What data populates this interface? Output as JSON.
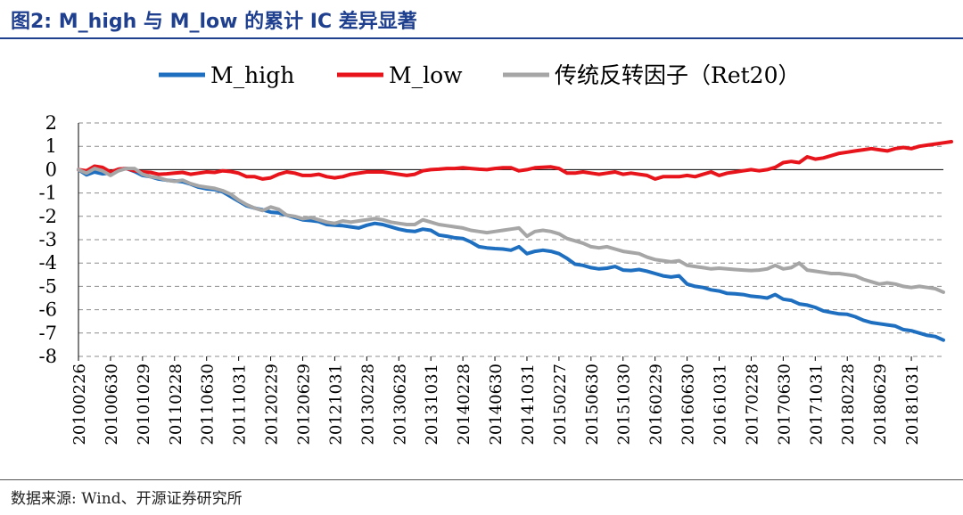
{
  "figure": {
    "title": "图2:  M_high 与 M_low 的累计 IC 差异显著",
    "source": "数据来源:  Wind、开源证券研究所"
  },
  "chart_data": {
    "type": "line",
    "title": "图2:  M_high 与 M_low 的累计 IC 差异显著",
    "xlabel": "",
    "ylabel": "",
    "ylim": [
      -8,
      2
    ],
    "yticks": [
      2,
      1,
      0,
      -1,
      -2,
      -3,
      -4,
      -5,
      -6,
      -7,
      -8
    ],
    "grid": true,
    "legend_position": "top",
    "x_tick_labels": [
      "20100226",
      "20100630",
      "20101029",
      "20110228",
      "20110630",
      "20111031",
      "20120229",
      "20120629",
      "20121031",
      "20130228",
      "20130628",
      "20131031",
      "20140228",
      "20140630",
      "20141031",
      "20150227",
      "20150630",
      "20151030",
      "20160229",
      "20160630",
      "20161031",
      "20170228",
      "20170630",
      "20171031",
      "20180228",
      "20180629",
      "20181031"
    ],
    "tick_every": 4,
    "series": [
      {
        "name": "M_high",
        "color": "#1f6fc0",
        "values": [
          0,
          -0.22,
          -0.1,
          -0.18,
          -0.14,
          0.02,
          0.05,
          -0.08,
          -0.25,
          -0.3,
          -0.4,
          -0.45,
          -0.48,
          -0.52,
          -0.62,
          -0.75,
          -0.82,
          -0.85,
          -0.95,
          -1.15,
          -1.35,
          -1.55,
          -1.65,
          -1.72,
          -1.82,
          -1.85,
          -1.95,
          -2.05,
          -2.15,
          -2.18,
          -2.22,
          -2.35,
          -2.38,
          -2.4,
          -2.45,
          -2.5,
          -2.38,
          -2.3,
          -2.35,
          -2.45,
          -2.55,
          -2.62,
          -2.65,
          -2.55,
          -2.6,
          -2.8,
          -2.85,
          -2.92,
          -2.95,
          -3.1,
          -3.3,
          -3.35,
          -3.38,
          -3.4,
          -3.45,
          -3.3,
          -3.6,
          -3.5,
          -3.45,
          -3.5,
          -3.6,
          -3.8,
          -4.05,
          -4.1,
          -4.2,
          -4.25,
          -4.22,
          -4.15,
          -4.3,
          -4.32,
          -4.28,
          -4.35,
          -4.45,
          -4.55,
          -4.6,
          -4.55,
          -4.9,
          -5.0,
          -5.05,
          -5.15,
          -5.2,
          -5.3,
          -5.32,
          -5.35,
          -5.42,
          -5.45,
          -5.5,
          -5.35,
          -5.55,
          -5.6,
          -5.75,
          -5.8,
          -5.9,
          -6.05,
          -6.12,
          -6.18,
          -6.2,
          -6.3,
          -6.45,
          -6.55,
          -6.6,
          -6.65,
          -6.7,
          -6.85,
          -6.9,
          -7.0,
          -7.1,
          -7.15,
          -7.3
        ]
      },
      {
        "name": "M_low",
        "color": "#e8141b",
        "values": [
          0,
          -0.05,
          0.15,
          0.1,
          -0.1,
          0.02,
          0.05,
          -0.05,
          -0.1,
          -0.12,
          -0.2,
          -0.18,
          -0.15,
          -0.12,
          -0.2,
          -0.15,
          -0.1,
          -0.12,
          -0.05,
          -0.08,
          -0.15,
          -0.3,
          -0.3,
          -0.4,
          -0.35,
          -0.2,
          -0.1,
          -0.15,
          -0.25,
          -0.25,
          -0.2,
          -0.3,
          -0.35,
          -0.3,
          -0.2,
          -0.15,
          -0.1,
          -0.1,
          -0.1,
          -0.15,
          -0.2,
          -0.25,
          -0.2,
          -0.05,
          0.0,
          0.02,
          0.05,
          0.05,
          0.08,
          0.05,
          0.02,
          0.0,
          0.05,
          0.08,
          0.08,
          -0.05,
          0.0,
          0.08,
          0.1,
          0.12,
          0.05,
          -0.15,
          -0.15,
          -0.1,
          -0.15,
          -0.2,
          -0.15,
          -0.1,
          -0.2,
          -0.15,
          -0.2,
          -0.25,
          -0.4,
          -0.3,
          -0.3,
          -0.3,
          -0.25,
          -0.3,
          -0.2,
          -0.1,
          -0.25,
          -0.15,
          -0.1,
          -0.05,
          0.0,
          -0.05,
          0.0,
          0.1,
          0.3,
          0.35,
          0.3,
          0.55,
          0.45,
          0.5,
          0.6,
          0.7,
          0.75,
          0.8,
          0.85,
          0.9,
          0.85,
          0.8,
          0.9,
          0.95,
          0.9,
          1.0,
          1.05,
          1.1,
          1.15,
          1.2
        ]
      },
      {
        "name": "传统反转因子（Ret20）",
        "color": "#a6a6a6",
        "values": [
          0,
          -0.15,
          0.05,
          -0.05,
          -0.25,
          -0.05,
          0.05,
          0.05,
          -0.2,
          -0.3,
          -0.35,
          -0.45,
          -0.5,
          -0.45,
          -0.6,
          -0.7,
          -0.75,
          -0.8,
          -0.9,
          -1.05,
          -1.3,
          -1.5,
          -1.65,
          -1.75,
          -1.6,
          -1.7,
          -1.95,
          -2.0,
          -2.1,
          -2.05,
          -2.15,
          -2.25,
          -2.3,
          -2.2,
          -2.25,
          -2.2,
          -2.15,
          -2.1,
          -2.15,
          -2.25,
          -2.3,
          -2.35,
          -2.35,
          -2.15,
          -2.25,
          -2.35,
          -2.4,
          -2.45,
          -2.5,
          -2.6,
          -2.65,
          -2.7,
          -2.65,
          -2.6,
          -2.55,
          -2.5,
          -2.85,
          -2.65,
          -2.6,
          -2.65,
          -2.75,
          -2.95,
          -3.05,
          -3.15,
          -3.3,
          -3.35,
          -3.3,
          -3.4,
          -3.5,
          -3.55,
          -3.6,
          -3.75,
          -3.85,
          -3.9,
          -3.95,
          -3.9,
          -4.1,
          -4.15,
          -4.2,
          -4.25,
          -4.22,
          -4.25,
          -4.28,
          -4.3,
          -4.32,
          -4.3,
          -4.25,
          -4.1,
          -4.25,
          -4.2,
          -4.0,
          -4.3,
          -4.35,
          -4.4,
          -4.45,
          -4.45,
          -4.5,
          -4.55,
          -4.7,
          -4.8,
          -4.9,
          -4.85,
          -4.9,
          -5.0,
          -5.05,
          -5.0,
          -5.05,
          -5.1,
          -5.25
        ]
      }
    ]
  }
}
